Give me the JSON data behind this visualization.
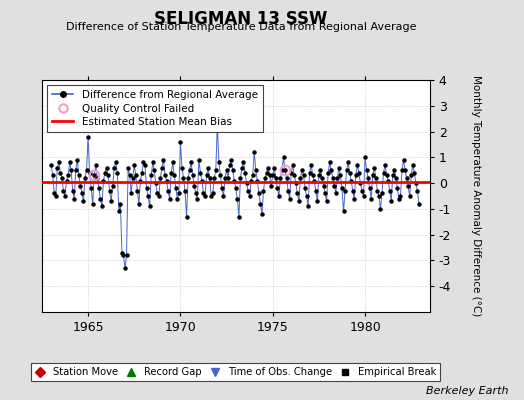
{
  "title": "SELIGMAN 13 SSW",
  "subtitle": "Difference of Station Temperature Data from Regional Average",
  "ylabel": "Monthly Temperature Anomaly Difference (°C)",
  "credit": "Berkeley Earth",
  "xlim": [
    1962.5,
    1983.5
  ],
  "ylim": [
    -5,
    4
  ],
  "yticks": [
    -4,
    -3,
    -2,
    -1,
    0,
    1,
    2,
    3,
    4
  ],
  "xticks": [
    1965,
    1970,
    1975,
    1980
  ],
  "bias": 0.05,
  "bg_color": "#e0e0e0",
  "plot_bg_color": "#ffffff",
  "line_color": "#4466cc",
  "marker_color": "#000000",
  "bias_color": "#ff0000",
  "qc_color": "#ff99cc",
  "time_series": [
    0.7,
    0.3,
    -0.4,
    -0.5,
    0.6,
    0.8,
    0.4,
    0.2,
    -0.3,
    -0.5,
    0.1,
    0.3,
    0.8,
    0.5,
    -0.3,
    -0.6,
    0.5,
    0.9,
    0.3,
    -0.1,
    -0.4,
    -0.7,
    0.2,
    0.5,
    1.8,
    0.4,
    -0.2,
    -0.8,
    0.3,
    0.7,
    0.2,
    -0.2,
    -0.6,
    -0.9,
    0.1,
    0.4,
    0.6,
    0.3,
    -0.3,
    -0.7,
    -0.1,
    0.6,
    0.8,
    0.4,
    -1.1,
    -0.8,
    -2.7,
    -2.8,
    -3.3,
    -2.8,
    0.6,
    0.3,
    -0.4,
    0.2,
    0.7,
    0.3,
    -0.3,
    -0.8,
    0.1,
    0.4,
    0.8,
    0.7,
    -0.2,
    -0.5,
    -0.9,
    0.3,
    0.8,
    0.5,
    0.0,
    -0.4,
    -0.5,
    0.2,
    0.6,
    0.9,
    0.3,
    0.1,
    -0.3,
    -0.6,
    0.4,
    0.8,
    0.3,
    -0.2,
    -0.6,
    -0.4,
    1.6,
    0.6,
    0.2,
    -0.3,
    -1.3,
    0.2,
    0.5,
    0.8,
    0.3,
    -0.1,
    -0.4,
    -0.6,
    0.9,
    0.4,
    0.1,
    -0.4,
    -0.5,
    0.3,
    0.6,
    0.2,
    -0.5,
    -0.4,
    0.2,
    0.5,
    2.3,
    0.8,
    0.3,
    -0.2,
    -0.5,
    0.2,
    0.5,
    0.2,
    0.7,
    0.9,
    0.5,
    0.1,
    -0.2,
    -0.6,
    -1.3,
    0.2,
    0.6,
    0.8,
    0.4,
    0.0,
    -0.3,
    -0.5,
    0.1,
    0.3,
    1.2,
    0.5,
    0.1,
    -0.4,
    -0.8,
    -1.2,
    -0.3,
    0.2,
    0.4,
    0.6,
    0.3,
    -0.1,
    0.3,
    0.6,
    0.2,
    -0.2,
    -0.5,
    0.2,
    0.5,
    1.0,
    0.5,
    0.2,
    -0.3,
    -0.6,
    0.4,
    0.7,
    0.3,
    0.0,
    -0.4,
    -0.7,
    0.2,
    0.5,
    0.3,
    -0.2,
    -0.5,
    -0.9,
    0.4,
    0.7,
    0.3,
    0.1,
    -0.3,
    -0.7,
    0.3,
    0.5,
    0.2,
    -0.1,
    -0.4,
    -0.7,
    0.4,
    0.8,
    0.5,
    0.2,
    -0.1,
    -0.4,
    0.2,
    0.6,
    0.3,
    -0.2,
    -1.1,
    -0.3,
    0.5,
    0.8,
    0.4,
    0.1,
    -0.3,
    -0.6,
    0.3,
    0.7,
    0.4,
    0.0,
    -0.3,
    -0.5,
    1.0,
    0.5,
    0.2,
    -0.2,
    -0.6,
    0.3,
    0.6,
    0.2,
    -0.3,
    -0.5,
    -1.0,
    -0.4,
    0.4,
    0.7,
    0.3,
    0.1,
    -0.3,
    -0.7,
    0.3,
    0.5,
    0.2,
    -0.2,
    -0.6,
    -0.5,
    0.5,
    0.9,
    0.5,
    0.2,
    -0.1,
    -0.5,
    0.3,
    0.7,
    0.4,
    0.0,
    -0.3,
    -0.8
  ],
  "qc_indices": [
    28,
    152
  ],
  "start_year": 1963.0
}
